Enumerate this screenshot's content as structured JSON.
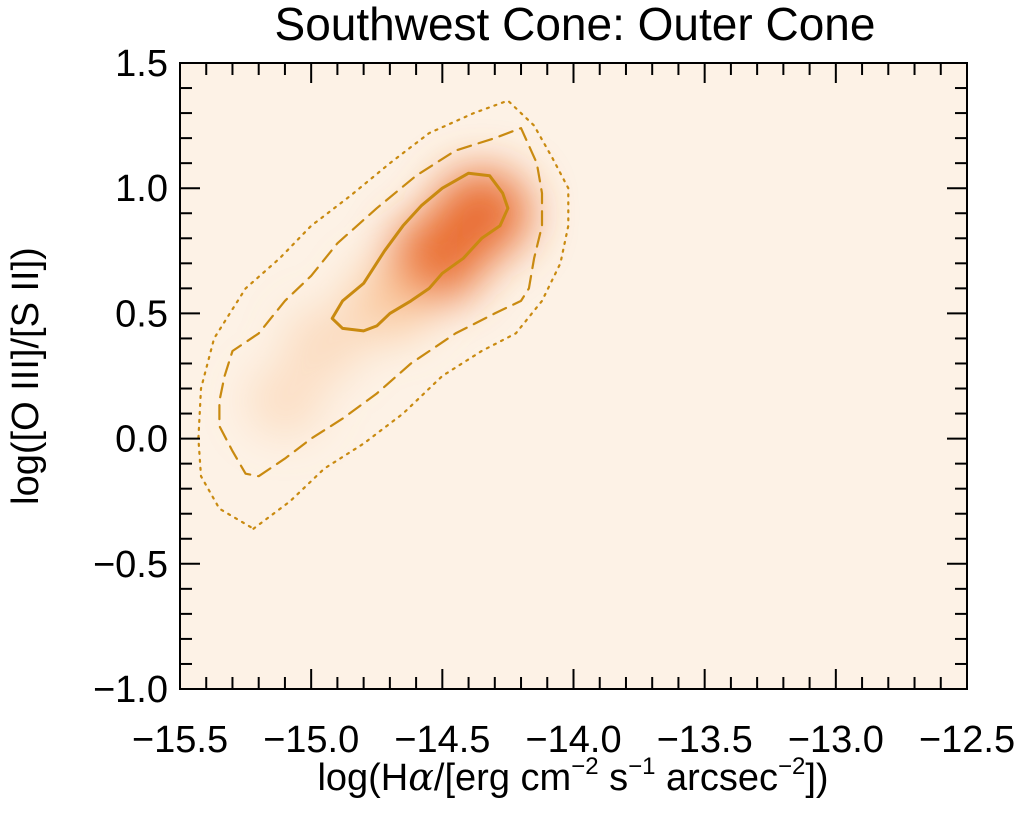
{
  "chart_data": {
    "type": "heatmap",
    "title": "Southwest Cone: Outer Cone",
    "xlabel": {
      "prefix": "log(H",
      "alpha": "α",
      "mid": "/[erg cm",
      "sup1": "−2",
      "mid2": " s",
      "sup2": "−1",
      "mid3": " arcsec",
      "sup3": "−2",
      "suffix": "])"
    },
    "ylabel": "log([O III]/[S II])",
    "xlim": [
      -15.5,
      -12.5
    ],
    "ylim": [
      -1.0,
      1.5
    ],
    "x_ticks": [
      -15.5,
      -15.0,
      -14.5,
      -14.0,
      -13.5,
      -13.0,
      -12.5
    ],
    "x_tick_labels": [
      "−15.5",
      "−15.0",
      "−14.5",
      "−14.0",
      "−13.5",
      "−13.0",
      "−12.5"
    ],
    "y_ticks": [
      -1.0,
      -0.5,
      0.0,
      0.5,
      1.0,
      1.5
    ],
    "y_tick_labels": [
      "−1.0",
      "−0.5",
      "0.0",
      "0.5",
      "1.0",
      "1.5"
    ],
    "colormap": {
      "low": "#fdf2e6",
      "mid": "#f8b47c",
      "high": "#e8692a"
    },
    "contour_color": "#c98a10",
    "density_peaks": [
      {
        "x": -14.35,
        "y": 0.9,
        "weight": 1.0
      },
      {
        "x": -14.52,
        "y": 0.72,
        "weight": 0.9
      },
      {
        "x": -14.7,
        "y": 0.55,
        "weight": 0.45
      },
      {
        "x": -14.95,
        "y": 0.38,
        "weight": 0.15
      },
      {
        "x": -15.1,
        "y": 0.15,
        "weight": 0.08
      }
    ],
    "contours": [
      {
        "level": "inner",
        "style": "solid",
        "points": [
          [
            -14.75,
            0.45
          ],
          [
            -14.7,
            0.5
          ],
          [
            -14.62,
            0.55
          ],
          [
            -14.55,
            0.6
          ],
          [
            -14.5,
            0.66
          ],
          [
            -14.42,
            0.72
          ],
          [
            -14.35,
            0.8
          ],
          [
            -14.28,
            0.85
          ],
          [
            -14.25,
            0.92
          ],
          [
            -14.27,
            0.98
          ],
          [
            -14.32,
            1.05
          ],
          [
            -14.4,
            1.06
          ],
          [
            -14.5,
            1.0
          ],
          [
            -14.58,
            0.93
          ],
          [
            -14.65,
            0.85
          ],
          [
            -14.72,
            0.75
          ],
          [
            -14.8,
            0.62
          ],
          [
            -14.88,
            0.55
          ],
          [
            -14.92,
            0.48
          ],
          [
            -14.88,
            0.44
          ],
          [
            -14.8,
            0.43
          ]
        ]
      },
      {
        "level": "middle",
        "style": "dashed",
        "points": [
          [
            -15.2,
            -0.15
          ],
          [
            -15.1,
            -0.08
          ],
          [
            -15.0,
            0.0
          ],
          [
            -14.88,
            0.08
          ],
          [
            -14.75,
            0.18
          ],
          [
            -14.62,
            0.3
          ],
          [
            -14.45,
            0.42
          ],
          [
            -14.3,
            0.5
          ],
          [
            -14.2,
            0.55
          ],
          [
            -14.17,
            0.6
          ],
          [
            -14.15,
            0.72
          ],
          [
            -14.12,
            0.85
          ],
          [
            -14.12,
            0.98
          ],
          [
            -14.14,
            1.1
          ],
          [
            -14.2,
            1.24
          ],
          [
            -14.3,
            1.2
          ],
          [
            -14.45,
            1.15
          ],
          [
            -14.6,
            1.05
          ],
          [
            -14.75,
            0.92
          ],
          [
            -14.9,
            0.78
          ],
          [
            -15.0,
            0.65
          ],
          [
            -15.1,
            0.55
          ],
          [
            -15.2,
            0.42
          ],
          [
            -15.3,
            0.35
          ],
          [
            -15.33,
            0.25
          ],
          [
            -15.35,
            0.15
          ],
          [
            -15.35,
            0.05
          ],
          [
            -15.3,
            -0.05
          ],
          [
            -15.25,
            -0.14
          ]
        ]
      },
      {
        "level": "outer",
        "style": "dotted",
        "points": [
          [
            -15.22,
            -0.36
          ],
          [
            -15.08,
            -0.25
          ],
          [
            -14.95,
            -0.12
          ],
          [
            -14.8,
            -0.02
          ],
          [
            -14.65,
            0.1
          ],
          [
            -14.5,
            0.25
          ],
          [
            -14.35,
            0.35
          ],
          [
            -14.22,
            0.42
          ],
          [
            -14.12,
            0.55
          ],
          [
            -14.05,
            0.7
          ],
          [
            -14.02,
            0.85
          ],
          [
            -14.02,
            1.0
          ],
          [
            -14.08,
            1.12
          ],
          [
            -14.15,
            1.25
          ],
          [
            -14.25,
            1.35
          ],
          [
            -14.38,
            1.3
          ],
          [
            -14.55,
            1.22
          ],
          [
            -14.7,
            1.1
          ],
          [
            -14.85,
            0.97
          ],
          [
            -15.0,
            0.85
          ],
          [
            -15.12,
            0.72
          ],
          [
            -15.25,
            0.6
          ],
          [
            -15.37,
            0.4
          ],
          [
            -15.42,
            0.2
          ],
          [
            -15.43,
            0.0
          ],
          [
            -15.42,
            -0.15
          ],
          [
            -15.35,
            -0.28
          ]
        ]
      }
    ]
  }
}
